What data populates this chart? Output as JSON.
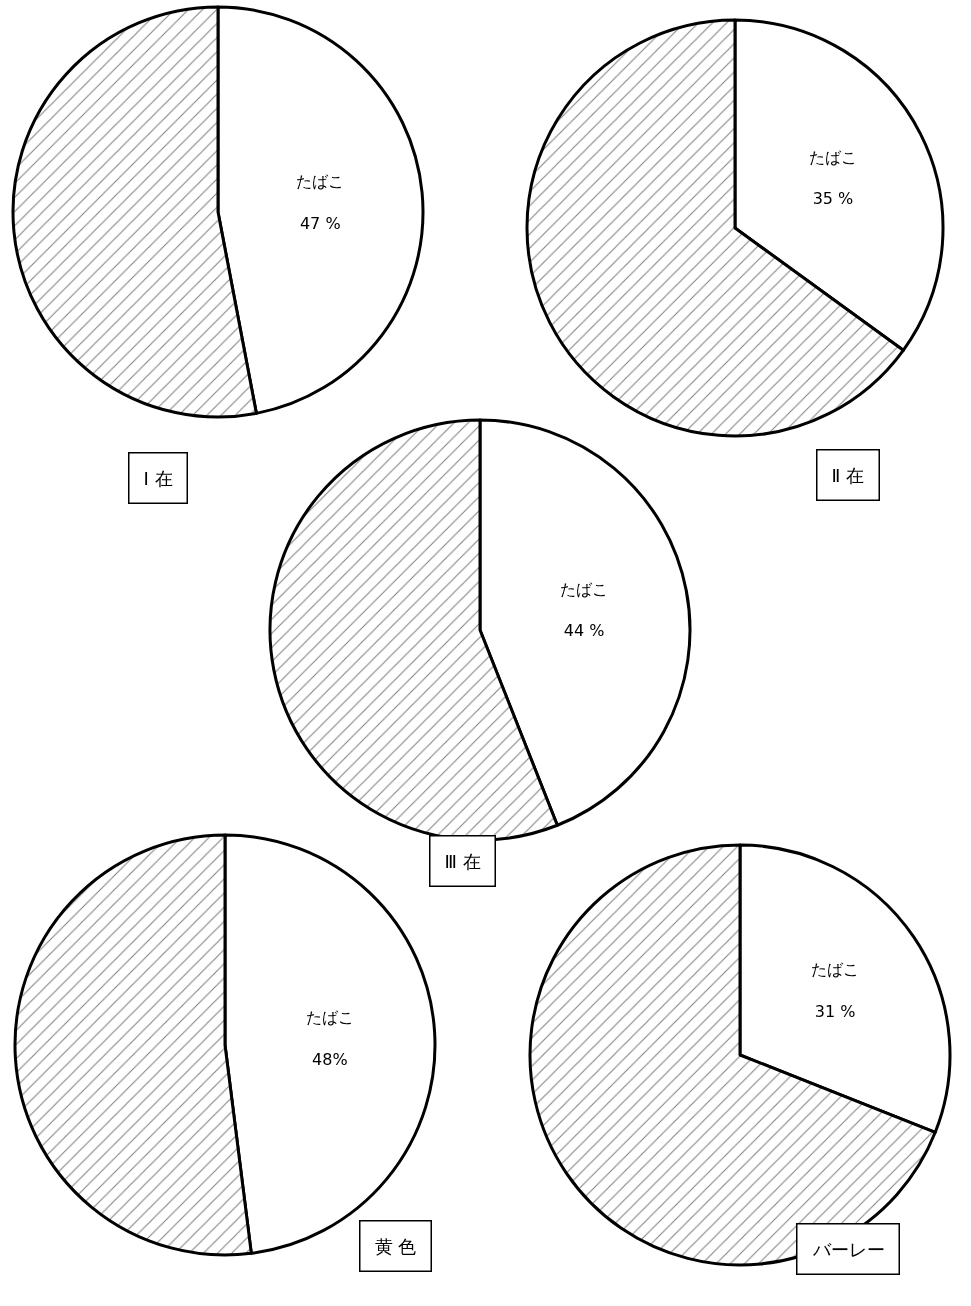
{
  "chart_data": [
    {
      "type": "pie",
      "title": "Ⅰ 在",
      "categories": [
        "たばこ",
        null
      ],
      "values": [
        47,
        53
      ],
      "value_labels": [
        "47 %",
        null
      ],
      "colors": [
        "#ffffff",
        "#000000"
      ],
      "legend": false
    },
    {
      "type": "pie",
      "title": "Ⅱ 在",
      "categories": [
        "たばこ",
        null
      ],
      "values": [
        35,
        65
      ],
      "value_labels": [
        "35 %",
        null
      ],
      "colors": [
        "#ffffff",
        "#000000"
      ],
      "legend": false
    },
    {
      "type": "pie",
      "title": "Ⅲ 在",
      "categories": [
        "たばこ",
        null
      ],
      "values": [
        44,
        56
      ],
      "value_labels": [
        "44 %",
        null
      ],
      "colors": [
        "#ffffff",
        "#000000"
      ],
      "legend": false
    },
    {
      "type": "pie",
      "title": "黄 色",
      "categories": [
        "たばこ",
        null
      ],
      "values": [
        48,
        52
      ],
      "value_labels": [
        "48%",
        null
      ],
      "colors": [
        "#ffffff",
        "#000000"
      ],
      "legend": false
    },
    {
      "type": "pie",
      "title": "バーレー",
      "categories": [
        "たばこ",
        null
      ],
      "values": [
        31,
        69
      ],
      "value_labels": [
        "31 %",
        null
      ],
      "colors": [
        "#ffffff",
        "#000000"
      ],
      "legend": false
    }
  ]
}
